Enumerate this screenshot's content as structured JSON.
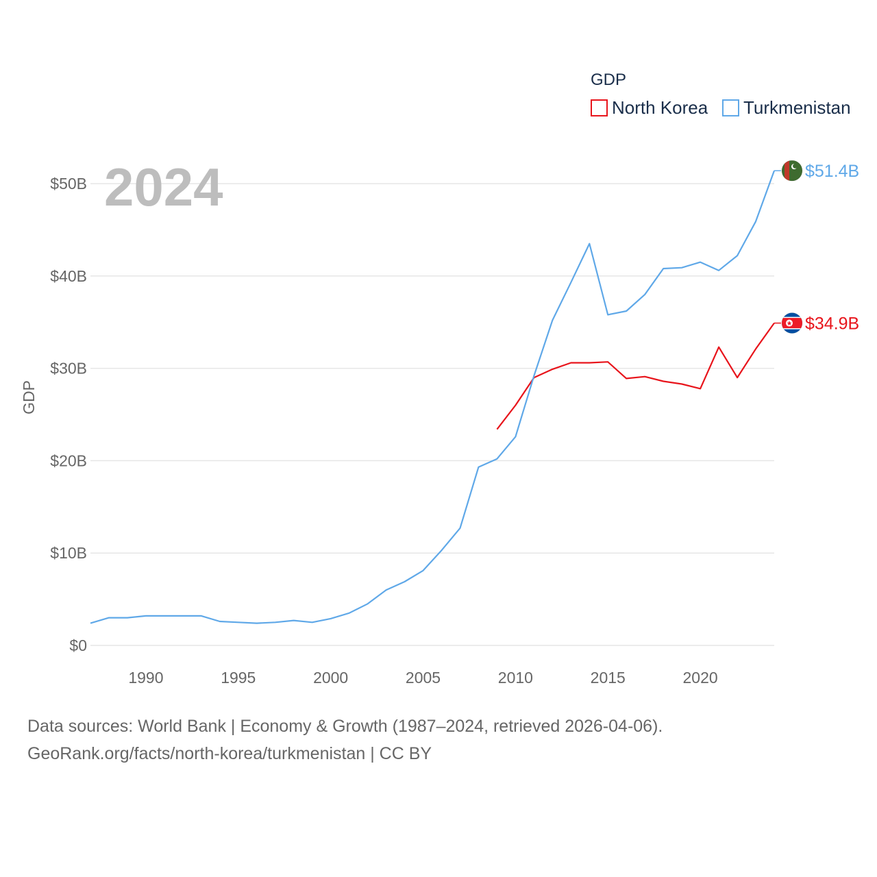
{
  "chart_data": {
    "type": "line",
    "title": "",
    "year_label": "2024",
    "ylabel": "GDP",
    "xlabel": "",
    "xlim": [
      1987,
      2024
    ],
    "ylim": [
      0,
      50
    ],
    "x_ticks": [
      1990,
      1995,
      2000,
      2005,
      2010,
      2015,
      2020
    ],
    "x_tick_labels": [
      "1990",
      "1995",
      "2000",
      "2005",
      "2010",
      "2015",
      "2020"
    ],
    "y_ticks": [
      0,
      10,
      20,
      30,
      40,
      50
    ],
    "y_tick_labels": [
      "$0",
      "$10B",
      "$20B",
      "$30B",
      "$40B",
      "$50B"
    ],
    "legend": {
      "title": "GDP",
      "entries": [
        "North Korea",
        "Turkmenistan"
      ],
      "position": "top-right"
    },
    "series": [
      {
        "name": "North Korea",
        "color": "#e8141b",
        "end_label": "$34.9B",
        "flag_icon": "north-korea-flag-icon",
        "x": [
          2009,
          2010,
          2011,
          2012,
          2013,
          2014,
          2015,
          2016,
          2017,
          2018,
          2019,
          2020,
          2021,
          2022,
          2023,
          2024
        ],
        "values": [
          23.4,
          26.0,
          29.0,
          29.9,
          30.6,
          30.6,
          30.7,
          28.9,
          29.1,
          28.6,
          28.3,
          27.8,
          32.3,
          29.0,
          32.1,
          34.9
        ]
      },
      {
        "name": "Turkmenistan",
        "color": "#5fa8e8",
        "end_label": "$51.4B",
        "flag_icon": "turkmenistan-flag-icon",
        "x": [
          1987,
          1988,
          1989,
          1990,
          1991,
          1992,
          1993,
          1994,
          1995,
          1996,
          1997,
          1998,
          1999,
          2000,
          2001,
          2002,
          2003,
          2004,
          2005,
          2006,
          2007,
          2008,
          2009,
          2010,
          2011,
          2012,
          2013,
          2014,
          2015,
          2016,
          2017,
          2018,
          2019,
          2020,
          2021,
          2022,
          2023,
          2024
        ],
        "values": [
          2.4,
          3.0,
          3.0,
          3.2,
          3.2,
          3.2,
          3.2,
          2.6,
          2.5,
          2.4,
          2.5,
          2.7,
          2.5,
          2.9,
          3.5,
          4.5,
          6.0,
          6.9,
          8.1,
          10.3,
          12.7,
          19.3,
          20.2,
          22.6,
          29.2,
          35.2,
          39.3,
          43.5,
          35.8,
          36.2,
          38.0,
          40.8,
          40.9,
          41.5,
          40.6,
          42.2,
          45.9,
          51.4
        ]
      }
    ]
  },
  "footer": {
    "sources": "Data sources: World Bank | Economy & Growth (1987–2024, retrieved 2026-04-06).",
    "attribution": "GeoRank.org/facts/north-korea/turkmenistan | CC BY"
  }
}
